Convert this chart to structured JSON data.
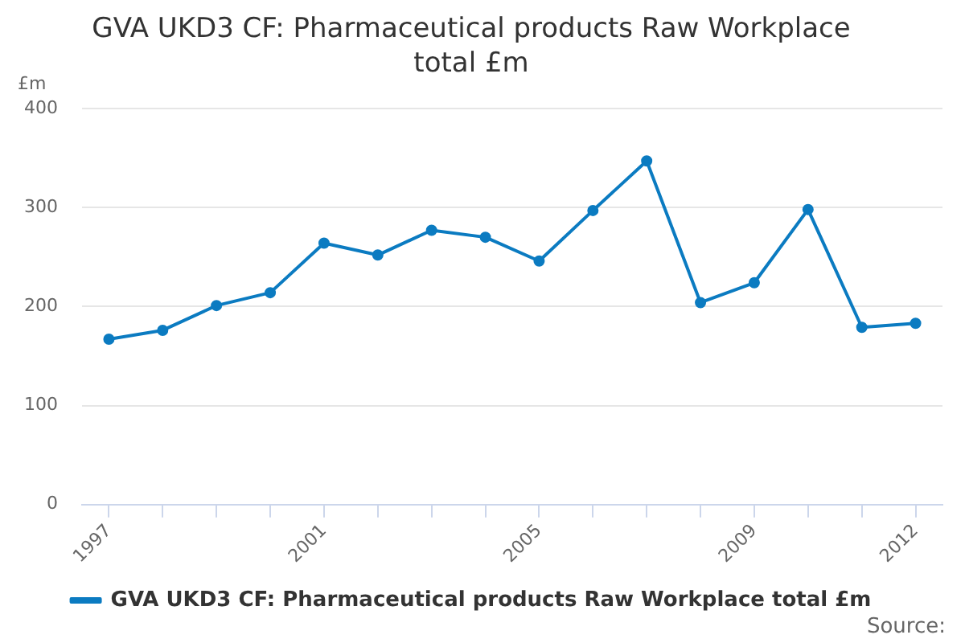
{
  "chart_data": {
    "type": "line",
    "title": "GVA UKD3 CF: Pharmaceutical products Raw Workplace total £m",
    "ylabel": "£m",
    "categories": [
      "1997",
      null,
      null,
      null,
      "2001",
      null,
      null,
      null,
      "2005",
      null,
      null,
      null,
      "2009",
      null,
      null,
      "2012"
    ],
    "series": [
      {
        "name": "GVA UKD3 CF: Pharmaceutical products Raw Workplace total £m",
        "color": "#0b7bc1",
        "values": [
          167,
          176,
          201,
          214,
          264,
          252,
          277,
          270,
          246,
          297,
          347,
          204,
          224,
          298,
          179,
          183
        ]
      }
    ],
    "ylim": [
      0,
      400
    ],
    "yticks": [
      0,
      100,
      200,
      300,
      400
    ],
    "grid": "y",
    "legend": "bottom",
    "marker": "circle",
    "line_style": "solid",
    "annotations": [
      "Source:"
    ]
  }
}
